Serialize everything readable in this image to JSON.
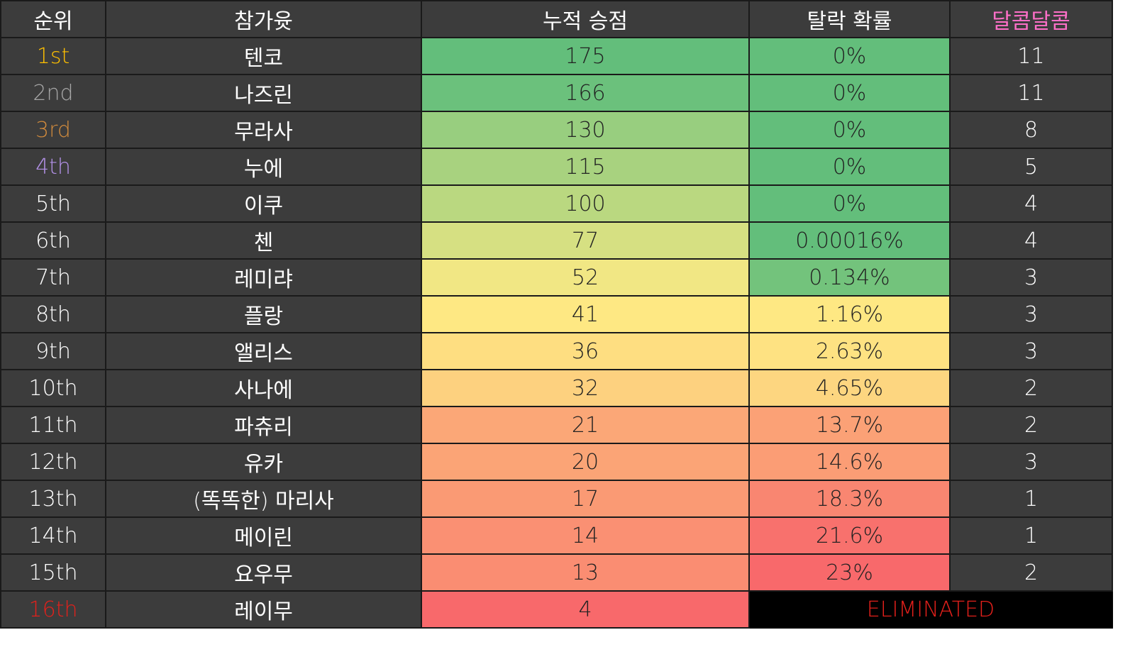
{
  "table": {
    "header": [
      "순위",
      "참가윳",
      "누적 승점",
      "탈락 확률",
      "달콤달콤"
    ],
    "rows": [
      [
        "1st",
        "텐코",
        175,
        "0%",
        11
      ],
      [
        "2nd",
        "나즈린",
        166,
        "0%",
        11
      ],
      [
        "3rd",
        "무라사",
        130,
        "0%",
        8
      ],
      [
        "4th",
        "누에",
        115,
        "0%",
        5
      ],
      [
        "5th",
        "이쿠",
        100,
        "0%",
        4
      ],
      [
        "6th",
        "첸",
        77,
        "0.00016%",
        4
      ],
      [
        "7th",
        "레미랴",
        52,
        "0.134%",
        3
      ],
      [
        "8th",
        "플랑",
        41,
        "1.16%",
        3
      ],
      [
        "9th",
        "앨리스",
        36,
        "2.63%",
        3
      ],
      [
        "10th",
        "사나에",
        32,
        "4.65%",
        2
      ],
      [
        "11th",
        "파츄리",
        21,
        "13.7%",
        2
      ],
      [
        "12th",
        "유카",
        20,
        "14.6%",
        3
      ],
      [
        "13th",
        "(똑똑한) 마리사",
        17,
        "18.3%",
        1
      ],
      [
        "14th",
        "메이린",
        14,
        "21.6%",
        1
      ],
      [
        "15th",
        "요우무",
        13,
        "23%",
        2
      ],
      [
        "16th",
        "레이무",
        4,
        "ELIMINATED"
      ]
    ]
  }
}
